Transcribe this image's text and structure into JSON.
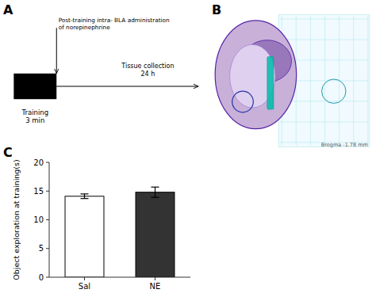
{
  "chart_data": [
    {
      "type": "diagram",
      "title": "A",
      "annotations": [
        "Training\n3 min",
        "Post-training intra- BLA administration\nof norepinephrine",
        "Tissue collection\n24 h"
      ]
    },
    {
      "type": "image",
      "title": "B",
      "annotations": [
        "Bregma -1.78 mm"
      ]
    },
    {
      "type": "bar",
      "title": "C",
      "categories": [
        "Sal",
        "NE"
      ],
      "values": [
        14.1,
        14.8
      ],
      "errors": [
        0.4,
        0.9
      ],
      "colors": [
        "#ffffff",
        "#333333"
      ],
      "ylabel": "Object exploration at training(s)",
      "ylim": [
        0,
        20
      ],
      "yticks": [
        0,
        5,
        10,
        15,
        20
      ],
      "grid": false
    }
  ]
}
